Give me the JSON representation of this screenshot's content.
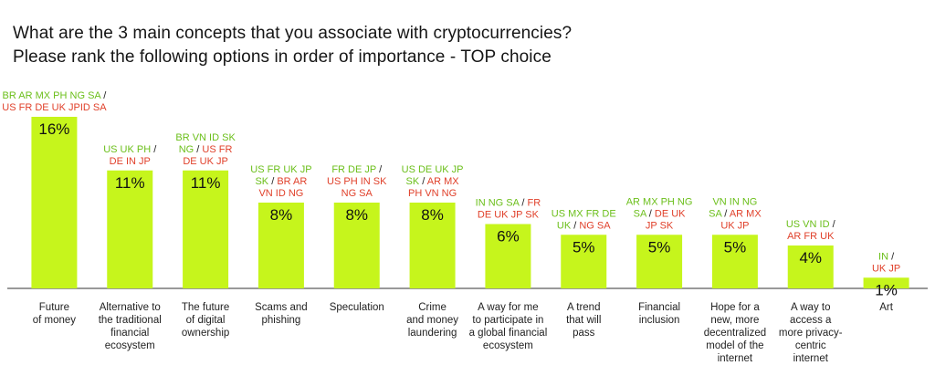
{
  "title_line1": "What are the 3 main concepts that you associate with cryptocurrencies?",
  "title_line2": "Please rank the following options in order of importance - TOP choice",
  "chart_data": {
    "type": "bar",
    "ylim": [
      0,
      16
    ],
    "grid": false,
    "colors": {
      "bar": "#c6f51c",
      "positive_countries": "#6bbf1a",
      "negative_countries": "#e0402a",
      "axis": "#333333"
    },
    "categories": [
      [
        "Future",
        "of money"
      ],
      [
        "Alternative to",
        "the traditional",
        "financial",
        "ecosystem"
      ],
      [
        "The future",
        "of digital",
        "ownership"
      ],
      [
        "Scams and",
        "phishing"
      ],
      [
        "Speculation"
      ],
      [
        "Crime",
        "and money",
        "laundering"
      ],
      [
        "A way for me",
        "to participate in",
        "a global financial",
        "ecosystem"
      ],
      [
        "A trend",
        "that will",
        "pass"
      ],
      [
        "Financial",
        "inclusion"
      ],
      [
        "Hope for a",
        "new, more",
        "decentralized",
        "model of the",
        "internet"
      ],
      [
        "A way to",
        "access a",
        "more privacy-",
        "centric",
        "internet"
      ],
      [
        "Art"
      ]
    ],
    "values": [
      16,
      11,
      11,
      8,
      8,
      8,
      6,
      5,
      5,
      5,
      4,
      1
    ],
    "value_labels": [
      "16%",
      "11%",
      "11%",
      "8%",
      "8%",
      "8%",
      "6%",
      "5%",
      "5%",
      "5%",
      "4%",
      "1%"
    ],
    "country_labels": [
      [
        [
          [
            "BR AR MX PH NG SA",
            "g"
          ],
          [
            " /",
            "k"
          ]
        ],
        [
          [
            "US FR DE UK JPID SA",
            "r"
          ]
        ]
      ],
      [
        [
          [
            "US UK PH",
            "g"
          ],
          [
            " /",
            "k"
          ]
        ],
        [
          [
            "DE IN JP",
            "r"
          ]
        ]
      ],
      [
        [
          [
            "BR VN ID SK",
            "g"
          ]
        ],
        [
          [
            "NG",
            "g"
          ],
          [
            " / ",
            "k"
          ],
          [
            "US FR",
            "r"
          ]
        ],
        [
          [
            "DE UK JP",
            "r"
          ]
        ]
      ],
      [
        [
          [
            "US FR UK JP",
            "g"
          ]
        ],
        [
          [
            "SK",
            "g"
          ],
          [
            " / ",
            "k"
          ],
          [
            "BR AR",
            "r"
          ]
        ],
        [
          [
            "VN ID NG",
            "r"
          ]
        ]
      ],
      [
        [
          [
            "FR DE JP",
            "g"
          ],
          [
            " /",
            "k"
          ]
        ],
        [
          [
            "US PH IN SK",
            "r"
          ]
        ],
        [
          [
            "NG SA",
            "r"
          ]
        ]
      ],
      [
        [
          [
            "US DE UK JP",
            "g"
          ]
        ],
        [
          [
            "SK",
            "g"
          ],
          [
            " / ",
            "k"
          ],
          [
            "AR MX",
            "r"
          ]
        ],
        [
          [
            "PH VN NG",
            "r"
          ]
        ]
      ],
      [
        [
          [
            "IN NG SA",
            "g"
          ],
          [
            " / ",
            "k"
          ],
          [
            "FR",
            "r"
          ]
        ],
        [
          [
            "DE UK JP SK",
            "r"
          ]
        ]
      ],
      [
        [
          [
            "US MX FR DE",
            "g"
          ]
        ],
        [
          [
            "UK",
            "g"
          ],
          [
            " / ",
            "k"
          ],
          [
            "NG SA",
            "r"
          ]
        ]
      ],
      [
        [
          [
            "AR MX PH NG",
            "g"
          ]
        ],
        [
          [
            "SA",
            "g"
          ],
          [
            " / ",
            "k"
          ],
          [
            "DE UK",
            "r"
          ]
        ],
        [
          [
            "JP SK",
            "r"
          ]
        ]
      ],
      [
        [
          [
            "VN IN NG",
            "g"
          ]
        ],
        [
          [
            "SA",
            "g"
          ],
          [
            " / ",
            "k"
          ],
          [
            "AR MX",
            "r"
          ]
        ],
        [
          [
            "UK JP",
            "r"
          ]
        ]
      ],
      [
        [
          [
            "US VN ID",
            "g"
          ],
          [
            " /",
            "k"
          ]
        ],
        [
          [
            "AR FR UK",
            "r"
          ]
        ]
      ],
      [
        [
          [
            "IN",
            "g"
          ],
          [
            " /",
            "k"
          ]
        ],
        [
          [
            "UK JP",
            "r"
          ]
        ]
      ]
    ]
  }
}
